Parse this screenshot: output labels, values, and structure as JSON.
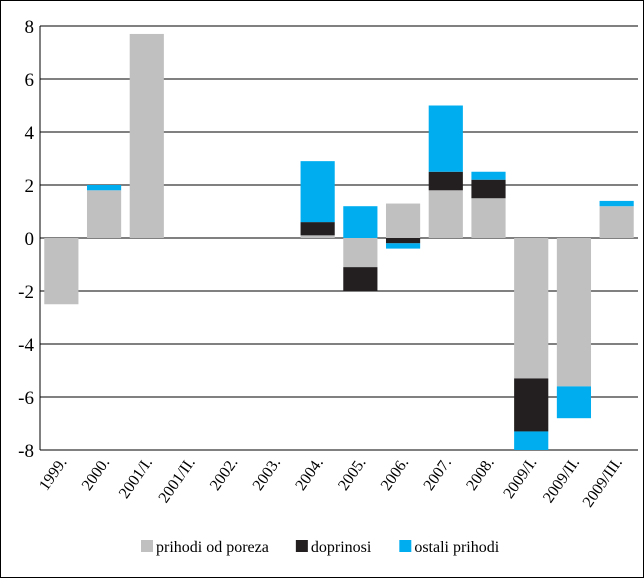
{
  "chart_data": {
    "type": "bar",
    "stacked": true,
    "categories": [
      "1999.",
      "2000.",
      "2001/I.",
      "2001/II.",
      "2002.",
      "2003.",
      "2004.",
      "2005.",
      "2006.",
      "2007.",
      "2008.",
      "2009/I.",
      "2009/II.",
      "2009/III."
    ],
    "series": [
      {
        "name": "prihodi od poreza",
        "color": "#c0c0c0",
        "values": [
          -2.5,
          1.8,
          7.7,
          0,
          0,
          0,
          0.1,
          -1.1,
          1.3,
          1.8,
          1.5,
          -5.3,
          -5.6,
          1.2
        ]
      },
      {
        "name": "doprinosi",
        "color": "#231f20",
        "values": [
          0,
          0,
          0,
          0,
          0,
          0,
          0.5,
          -0.9,
          -0.2,
          0.7,
          0.7,
          -2.0,
          0,
          0
        ]
      },
      {
        "name": "ostali prihodi",
        "color": "#00aeef",
        "values": [
          0,
          0.2,
          0,
          0,
          0,
          0,
          2.3,
          1.2,
          -0.2,
          2.5,
          0.3,
          -0.7,
          -1.2,
          0.2
        ]
      }
    ],
    "ylim": [
      -8,
      8
    ],
    "yticks": [
      "8",
      "6",
      "4",
      "2",
      "0",
      "-2",
      "-4",
      "-6",
      "-8"
    ],
    "grid": true,
    "legend_position": "bottom",
    "title": "",
    "xlabel": "",
    "ylabel": ""
  }
}
